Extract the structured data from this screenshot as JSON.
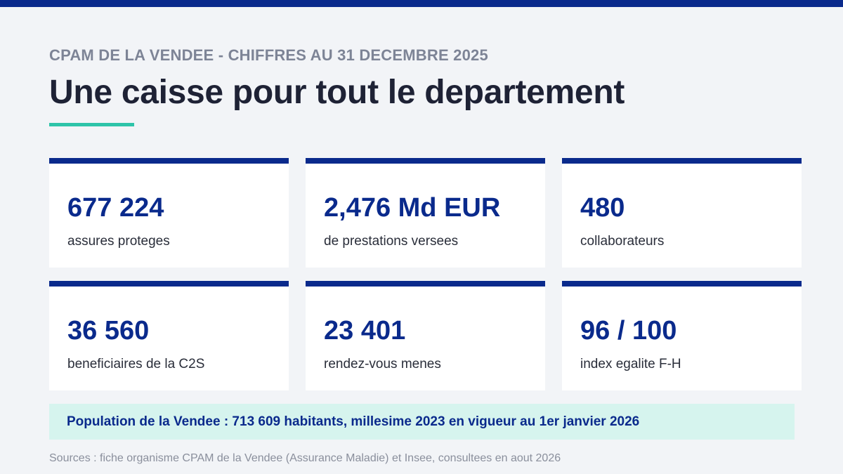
{
  "header": {
    "eyebrow": "CPAM DE LA VENDEE - CHIFFRES AU 31 DECEMBRE 2025",
    "title": "Une caisse pour tout le departement"
  },
  "stats": [
    {
      "value": "677 224",
      "label": "assures proteges"
    },
    {
      "value": "2,476 Md EUR",
      "label": "de prestations versees"
    },
    {
      "value": "480",
      "label": "collaborateurs"
    },
    {
      "value": "36 560",
      "label": "beneficiaires de la C2S"
    },
    {
      "value": "23 401",
      "label": "rendez-vous menes"
    },
    {
      "value": "96 / 100",
      "label": "index egalite F-H"
    }
  ],
  "note": "Population de la Vendee : 713 609 habitants, millesime 2023 en vigueur au 1er janvier 2026",
  "sources": "Sources : fiche organisme CPAM de la Vendee (Assurance Maladie) et Insee, consultees en aout 2026",
  "colors": {
    "primary": "#0a2a8c",
    "accent": "#2ec4a9",
    "background": "#f2f4f7",
    "note_background": "#d6f4ee"
  }
}
